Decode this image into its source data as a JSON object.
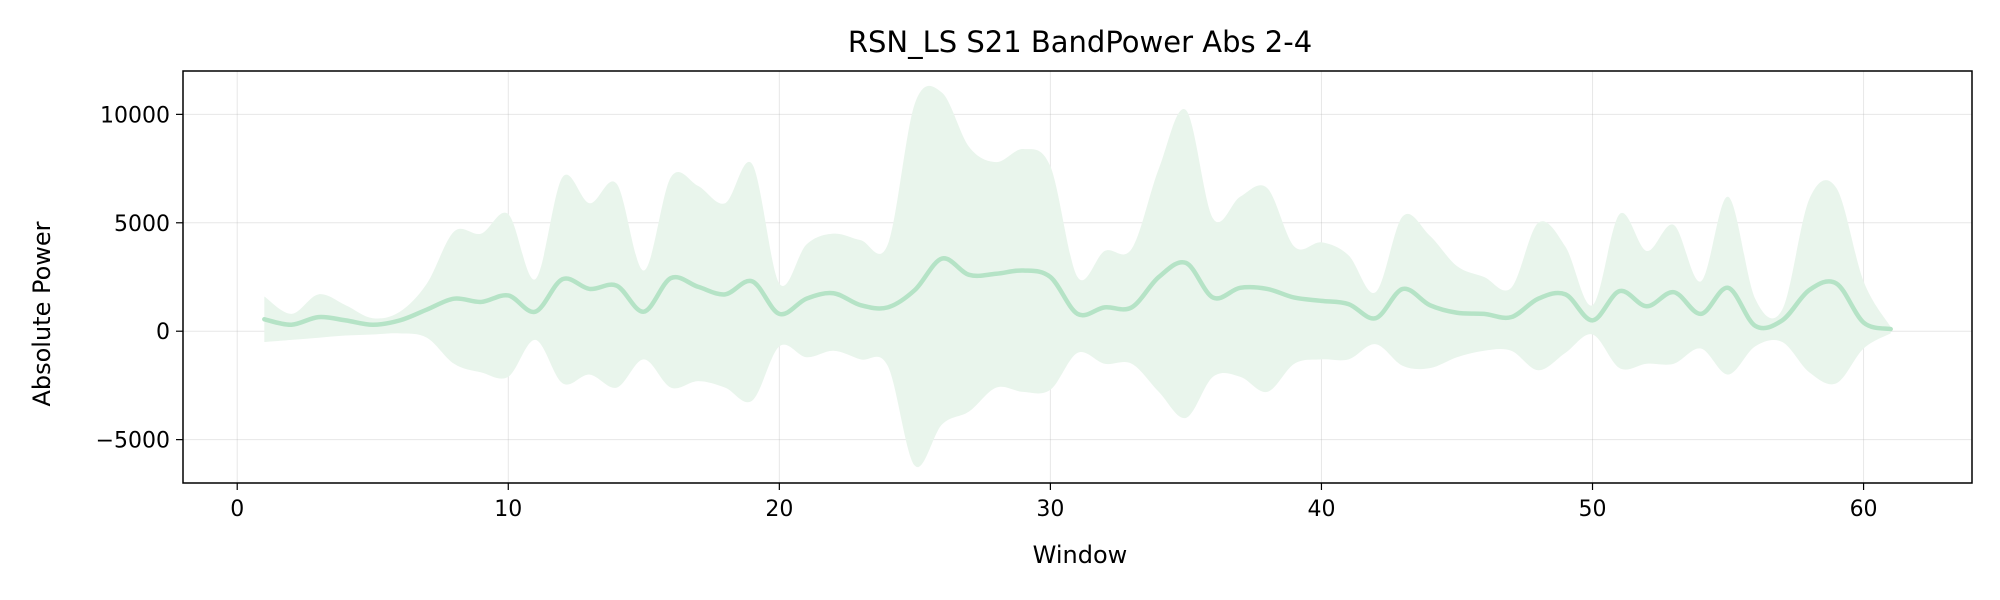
{
  "chart_data": {
    "type": "area",
    "title": "RSN_LS S21 BandPower Abs 2-4",
    "xlabel": "Window",
    "ylabel": "Absolute Power",
    "xlim": [
      -2,
      64
    ],
    "ylim": [
      -7000,
      12000
    ],
    "xticks": [
      0,
      10,
      20,
      30,
      40,
      50,
      60
    ],
    "xtick_labels": [
      "0",
      "10",
      "20",
      "30",
      "40",
      "50",
      "60"
    ],
    "yticks": [
      -5000,
      0,
      5000,
      10000
    ],
    "ytick_labels": [
      "−5000",
      "0",
      "5000",
      "10000"
    ],
    "grid": true,
    "colors": {
      "line": "#b5e3c6",
      "band": "#e9f5ec"
    },
    "x": [
      1,
      2,
      3,
      4,
      5,
      6,
      7,
      8,
      9,
      10,
      11,
      12,
      13,
      14,
      15,
      16,
      17,
      18,
      19,
      20,
      21,
      22,
      23,
      24,
      25,
      26,
      27,
      28,
      29,
      30,
      31,
      32,
      33,
      34,
      35,
      36,
      37,
      38,
      39,
      40,
      41,
      42,
      43,
      44,
      45,
      46,
      47,
      48,
      49,
      50,
      51,
      52,
      53,
      54,
      55,
      56,
      57,
      58,
      59,
      60,
      61
    ],
    "series": [
      {
        "values": [
          550,
          300,
          650,
          500,
          300,
          500,
          1000,
          1500,
          1350,
          1650,
          900,
          2400,
          1950,
          2100,
          900,
          2450,
          2050,
          1700,
          2300,
          800,
          1500,
          1750,
          1200,
          1100,
          1900,
          3350,
          2600,
          2650,
          2800,
          2500,
          800,
          1100,
          1100,
          2500,
          3150,
          1550,
          2000,
          1950,
          1550,
          1400,
          1250,
          600,
          1950,
          1200,
          850,
          800,
          650,
          1500,
          1700,
          500,
          1850,
          1150,
          1800,
          800,
          2000,
          250,
          500,
          1900,
          2200,
          400,
          100
        ],
        "upper": [
          1600,
          800,
          1700,
          1200,
          600,
          900,
          2200,
          4600,
          4500,
          5400,
          2400,
          7100,
          5900,
          6800,
          2800,
          7100,
          6700,
          5900,
          7700,
          2200,
          4000,
          4500,
          4200,
          4000,
          10500,
          11000,
          8500,
          7800,
          8400,
          7600,
          2500,
          3700,
          3800,
          7500,
          10200,
          5200,
          6200,
          6600,
          3900,
          4100,
          3500,
          1800,
          5300,
          4400,
          3000,
          2500,
          2000,
          5000,
          3900,
          1200,
          5400,
          3700,
          4900,
          2300,
          6200,
          1500,
          1000,
          6100,
          6600,
          2300,
          200
        ],
        "lower": [
          -500,
          -400,
          -300,
          -200,
          -150,
          -100,
          -300,
          -1500,
          -1900,
          -2100,
          -400,
          -2400,
          -2000,
          -2600,
          -1300,
          -2600,
          -2300,
          -2600,
          -3200,
          -700,
          -1200,
          -900,
          -1300,
          -1600,
          -6200,
          -4300,
          -3700,
          -2600,
          -2800,
          -2700,
          -1000,
          -1500,
          -1500,
          -2800,
          -4000,
          -2100,
          -2100,
          -2800,
          -1500,
          -1300,
          -1300,
          -600,
          -1600,
          -1700,
          -1200,
          -900,
          -900,
          -1800,
          -1000,
          -150,
          -1700,
          -1500,
          -1500,
          -800,
          -2000,
          -700,
          -500,
          -1900,
          -2400,
          -800,
          -100
        ]
      }
    ]
  }
}
